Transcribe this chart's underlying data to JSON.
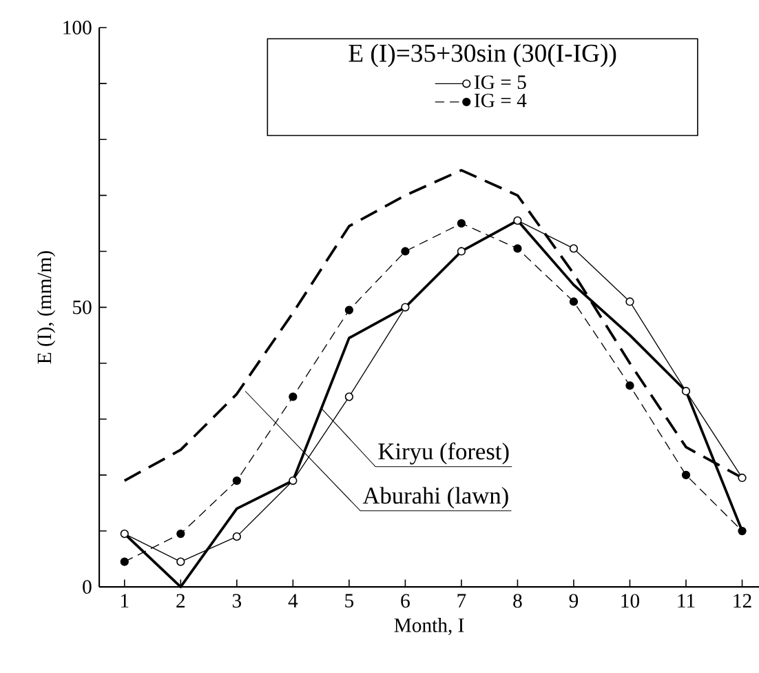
{
  "chart_data": {
    "type": "line",
    "xlabel": "Month, I",
    "ylabel": "E (I), (mm/m)",
    "legend_title": "E (I)=35+30sin (30(I-IG))",
    "x": [
      1,
      2,
      3,
      4,
      5,
      6,
      7,
      8,
      9,
      10,
      11,
      12
    ],
    "xlim": [
      0.55,
      12.3
    ],
    "xticks": [
      1,
      2,
      3,
      4,
      5,
      6,
      7,
      8,
      9,
      10,
      11,
      12
    ],
    "ylim": [
      0,
      100
    ],
    "yticks": [
      0,
      {
        "value": 10,
        "label": null
      },
      {
        "value": 20,
        "label": null
      },
      {
        "value": 30,
        "label": null
      },
      {
        "value": 40,
        "label": null
      },
      50,
      {
        "value": 60,
        "label": null
      },
      {
        "value": 70,
        "label": null
      },
      {
        "value": 80,
        "label": null
      },
      {
        "value": 90,
        "label": null
      },
      100
    ],
    "legend": "top right",
    "series": [
      {
        "name": "IG = 5",
        "color": "#000000",
        "marker": "circle",
        "line_style": "solid",
        "values": [
          9.5,
          4.5,
          9,
          19,
          34,
          50,
          60,
          65.5,
          60.5,
          51,
          35,
          19.5
        ]
      },
      {
        "name": "IG = 4",
        "color": "#000000",
        "marker": "circle",
        "line_style": "dashed",
        "values": [
          4.5,
          9.5,
          19,
          34,
          49.5,
          60,
          65,
          60.5,
          51,
          36,
          20,
          10
        ]
      },
      {
        "color": "#000000",
        "marker": "none",
        "line_style": "solid",
        "values": [
          9.5,
          0,
          14,
          19,
          44.5,
          50,
          60,
          65.5,
          54,
          45,
          35,
          10
        ]
      },
      {
        "color": "#000000",
        "marker": "none",
        "line_style": "dashed",
        "values": [
          19,
          24.5,
          34.5,
          49,
          64.5,
          70,
          74.5,
          70,
          56,
          40,
          25,
          19.5
        ]
      }
    ],
    "annotations": [
      {
        "text": "Kiryu (forest)",
        "x": 4.5,
        "y": 32
      },
      {
        "text": "Aburahi (lawn)",
        "x": 3.15,
        "y": 35
      }
    ]
  }
}
